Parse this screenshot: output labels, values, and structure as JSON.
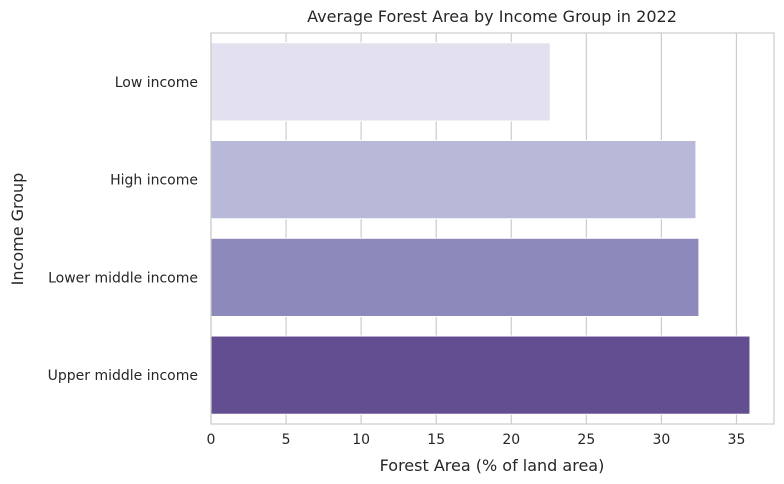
{
  "chart_data": {
    "type": "bar",
    "orientation": "horizontal",
    "title": "Average Forest Area by Income Group in 2022",
    "xlabel": "Forest Area (% of land area)",
    "ylabel": "Income Group",
    "categories": [
      "Low income",
      "High income",
      "Lower middle income",
      "Upper middle income"
    ],
    "values": [
      22.6,
      32.3,
      32.5,
      35.9
    ],
    "xlim": [
      0,
      37.5
    ],
    "xticks": [
      0,
      5,
      10,
      15,
      20,
      25,
      30,
      35
    ],
    "grid": "vertical",
    "colors": [
      "#e3e1ef",
      "#b8b8d8",
      "#8d89bb",
      "#644e92"
    ]
  }
}
